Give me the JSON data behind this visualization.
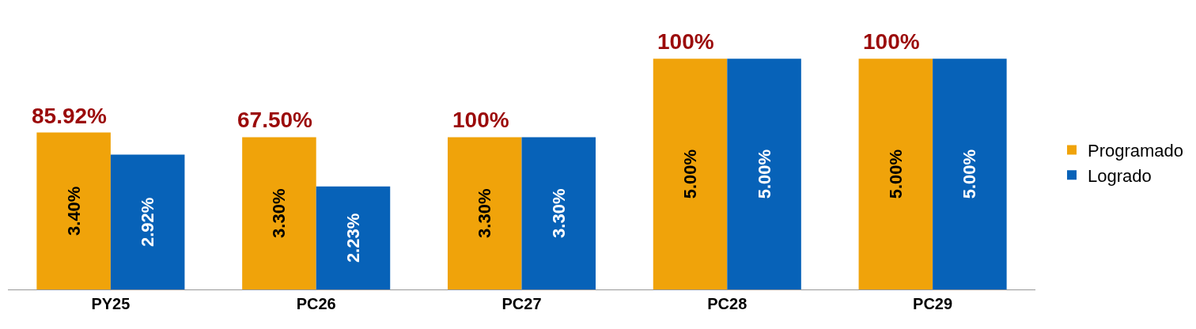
{
  "chart_data": {
    "type": "bar",
    "categories": [
      "PY25",
      "PC26",
      "PC27",
      "PC28",
      "PC29"
    ],
    "series": [
      {
        "name": "Programado",
        "color": "#f0a30a",
        "values": [
          3.4,
          3.3,
          3.3,
          5.0,
          5.0
        ],
        "value_labels": [
          "3.40%",
          "3.30%",
          "3.30%",
          "5.00%",
          "5.00%"
        ]
      },
      {
        "name": "Logrado",
        "color": "#0762b8",
        "values": [
          2.92,
          2.23,
          3.3,
          5.0,
          5.0
        ],
        "value_labels": [
          "2.92%",
          "2.23%",
          "3.30%",
          "5.00%",
          "5.00%"
        ]
      }
    ],
    "annotations": [
      {
        "text": "85.92%",
        "x": "PY25",
        "y": 3.4
      },
      {
        "text": "67.50%",
        "x": "PC26",
        "y": 3.3
      },
      {
        "text": "100%",
        "x": "PC27",
        "y": 3.3
      },
      {
        "text": "100%",
        "x": "PC28",
        "y": 5.0
      },
      {
        "text": "100%",
        "x": "PC29",
        "y": 5.0
      }
    ],
    "legend": "right"
  }
}
